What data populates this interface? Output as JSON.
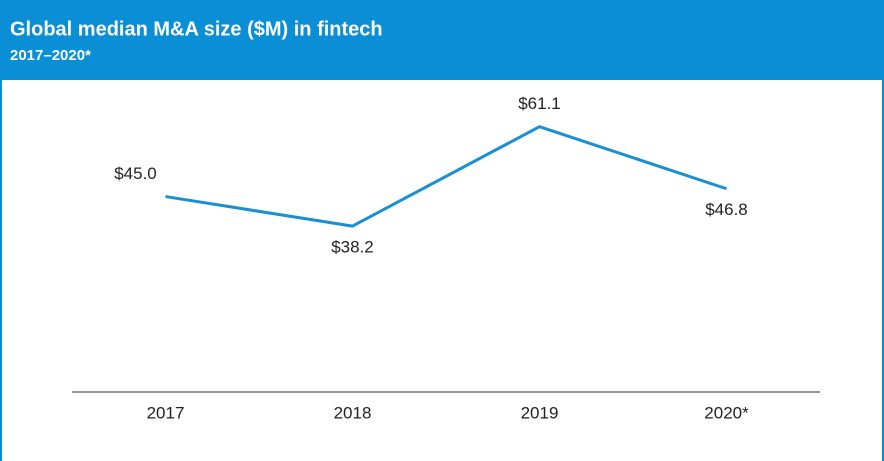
{
  "chart_data": {
    "type": "line",
    "title": "Global median M&A size ($M) in fintech",
    "subtitle": "2017–2020*",
    "categories": [
      "2017",
      "2018",
      "2019",
      "2020*"
    ],
    "series": [
      {
        "name": "Median M&A size",
        "color": "#1a8fd4",
        "values": [
          45.0,
          38.2,
          61.1,
          46.8
        ],
        "value_labels": [
          "$45.0",
          "$38.2",
          "$61.1",
          "$46.8"
        ]
      }
    ],
    "ylim": [
      0,
      70
    ]
  }
}
